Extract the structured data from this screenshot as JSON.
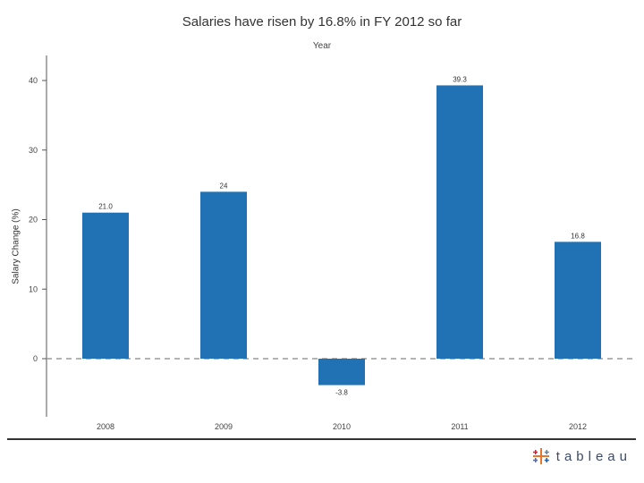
{
  "brand": {
    "name": "tableau",
    "colors": [
      "#e8762d",
      "#1f5fa8",
      "#59879b",
      "#c72035",
      "#5b6591"
    ]
  },
  "chart_data": {
    "type": "bar",
    "title": "Salaries have risen by 16.8% in FY 2012 so far",
    "subtitle": "Year",
    "xlabel": "",
    "ylabel": "Salary Change (%)",
    "categories": [
      "2008",
      "2009",
      "2010",
      "2011",
      "2012"
    ],
    "values": [
      21.0,
      24.0,
      -3.8,
      39.3,
      16.8
    ],
    "data_labels": [
      "21.0",
      "24",
      "-3.8",
      "39.3",
      "16.8"
    ],
    "ylim": [
      -8,
      43
    ],
    "yticks": [
      0,
      10,
      20,
      30,
      40
    ],
    "zero_line": "dashed",
    "grid": false,
    "bar_color": "#2171b5"
  }
}
